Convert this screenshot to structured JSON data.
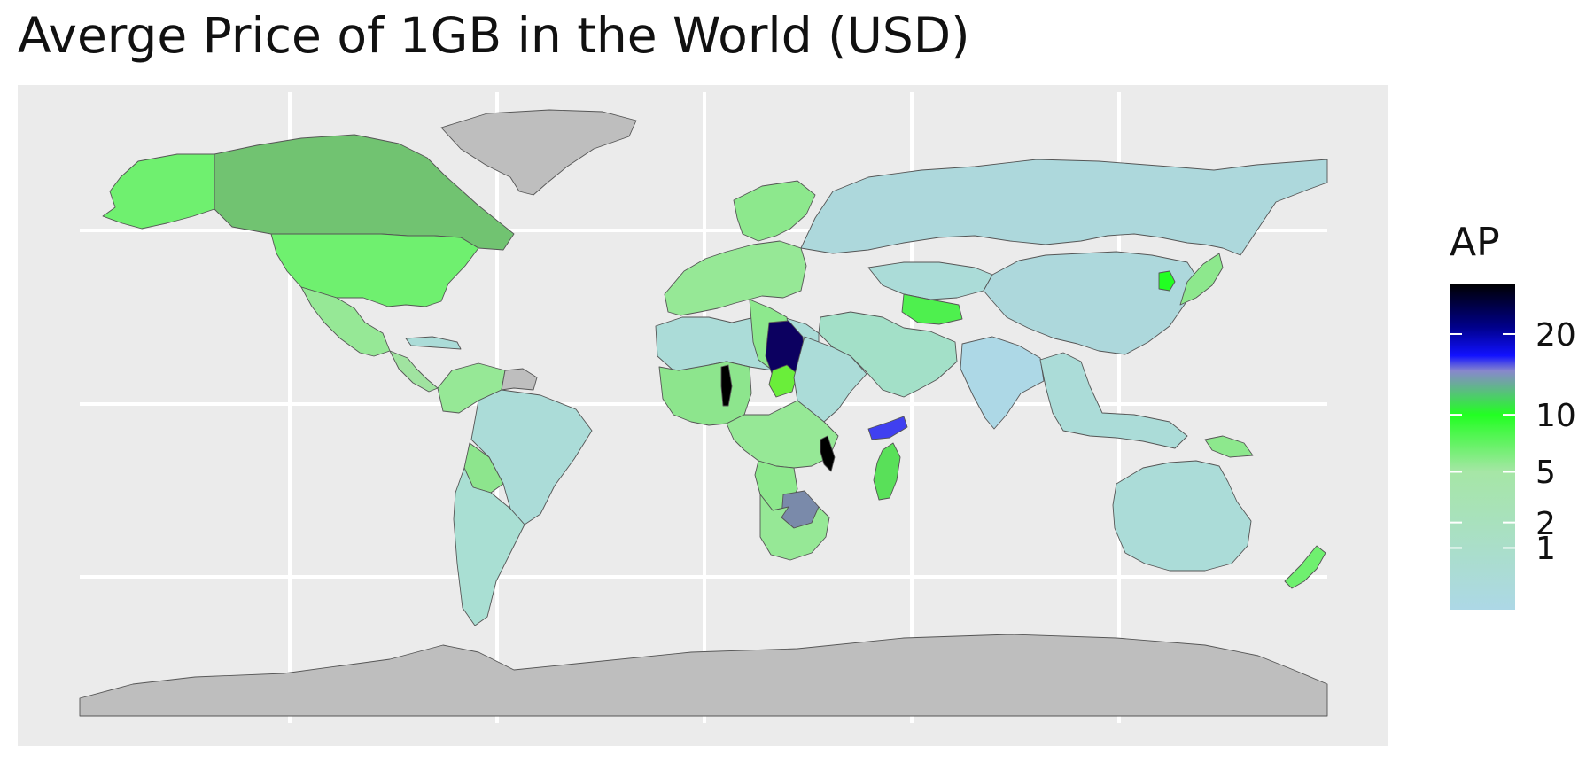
{
  "chart_data": {
    "type": "choropleth",
    "title": "Averge Price of 1GB in the World (USD)",
    "legend": {
      "title": "AP",
      "placement": "right",
      "scale": "sqrt",
      "range": [
        0,
        28
      ],
      "ticks": [
        {
          "label": "1",
          "value": 1
        },
        {
          "label": "2",
          "value": 2
        },
        {
          "label": "5",
          "value": 5
        },
        {
          "label": "10",
          "value": 10
        },
        {
          "label": "20",
          "value": 20
        }
      ],
      "gradient": [
        {
          "value": 0,
          "color": "#add8e6"
        },
        {
          "value": 5,
          "color": "#a6e6a6"
        },
        {
          "value": 10,
          "color": "#22ff22"
        },
        {
          "value": 15,
          "color": "#8888cc"
        },
        {
          "value": 17,
          "color": "#1111ff"
        },
        {
          "value": 21,
          "color": "#00008b"
        },
        {
          "value": 28,
          "color": "#000000"
        }
      ]
    },
    "missing_color": "#bebebe",
    "grid": true,
    "regions": [
      {
        "name": "Greenland",
        "value": null,
        "color": "#bebebe"
      },
      {
        "name": "Antarctica",
        "value": null,
        "color": "#bebebe"
      },
      {
        "name": "Canada",
        "value": 7,
        "color": "#71c371"
      },
      {
        "name": "Alaska",
        "value": 8,
        "color": "#6ff06f"
      },
      {
        "name": "United States",
        "value": 8,
        "color": "#6ff06f"
      },
      {
        "name": "Mexico",
        "value": 4,
        "color": "#96e896"
      },
      {
        "name": "Central America",
        "value": 3,
        "color": "#a0e3a0"
      },
      {
        "name": "Caribbean",
        "value": 2,
        "color": "#abdcd8"
      },
      {
        "name": "Colombia / Venezuela",
        "value": 4,
        "color": "#96e896"
      },
      {
        "name": "Brazil",
        "value": 2,
        "color": "#abdcd8"
      },
      {
        "name": "Bolivia",
        "value": 5,
        "color": "#8de58d"
      },
      {
        "name": "Argentina / Chile",
        "value": 2,
        "color": "#a9dfd3"
      },
      {
        "name": "Guianas",
        "value": null,
        "color": "#bebebe"
      },
      {
        "name": "Europe",
        "value": 4,
        "color": "#96e896"
      },
      {
        "name": "Scandinavia",
        "value": 6,
        "color": "#8de88d"
      },
      {
        "name": "Russia",
        "value": 1,
        "color": "#add8dc"
      },
      {
        "name": "China",
        "value": 1,
        "color": "#add8dc"
      },
      {
        "name": "Central Asia",
        "value": 2,
        "color": "#abdcd8"
      },
      {
        "name": "Turkmenistan",
        "value": 9,
        "color": "#4ef04e"
      },
      {
        "name": "India",
        "value": 1,
        "color": "#add8e6"
      },
      {
        "name": "Middle East",
        "value": 3,
        "color": "#a3e0c8"
      },
      {
        "name": "Yemen",
        "value": 17,
        "color": "#4040f0"
      },
      {
        "name": "North Korea",
        "value": 10,
        "color": "#22ff22"
      },
      {
        "name": "Japan",
        "value": 6,
        "color": "#8de88d"
      },
      {
        "name": "Southeast Asia",
        "value": 2,
        "color": "#abdcd8"
      },
      {
        "name": "Papua New Guinea",
        "value": 6,
        "color": "#8de88d"
      },
      {
        "name": "Australia",
        "value": 1,
        "color": "#abdcd8"
      },
      {
        "name": "New Zealand",
        "value": 7,
        "color": "#6ff06f"
      },
      {
        "name": "North Africa",
        "value": 2,
        "color": "#abdcd8"
      },
      {
        "name": "Libya",
        "value": 6,
        "color": "#8de88d"
      },
      {
        "name": "West Africa",
        "value": 5,
        "color": "#8de58d"
      },
      {
        "name": "Chad",
        "value": 24,
        "color": "#0c0060"
      },
      {
        "name": "Benin",
        "value": 27,
        "color": "#000000"
      },
      {
        "name": "Central African Republic",
        "value": 9,
        "color": "#6aee3a"
      },
      {
        "name": "Horn of Africa",
        "value": 2,
        "color": "#abdcd8"
      },
      {
        "name": "Central Africa",
        "value": 4,
        "color": "#96e896"
      },
      {
        "name": "Angola",
        "value": 6,
        "color": "#8de88d"
      },
      {
        "name": "Botswana",
        "value": 14,
        "color": "#7a8aaa"
      },
      {
        "name": "Malawi",
        "value": 27,
        "color": "#000000"
      },
      {
        "name": "Madagascar",
        "value": 8,
        "color": "#59e059"
      },
      {
        "name": "Southern Africa",
        "value": 4,
        "color": "#96e896"
      }
    ]
  }
}
